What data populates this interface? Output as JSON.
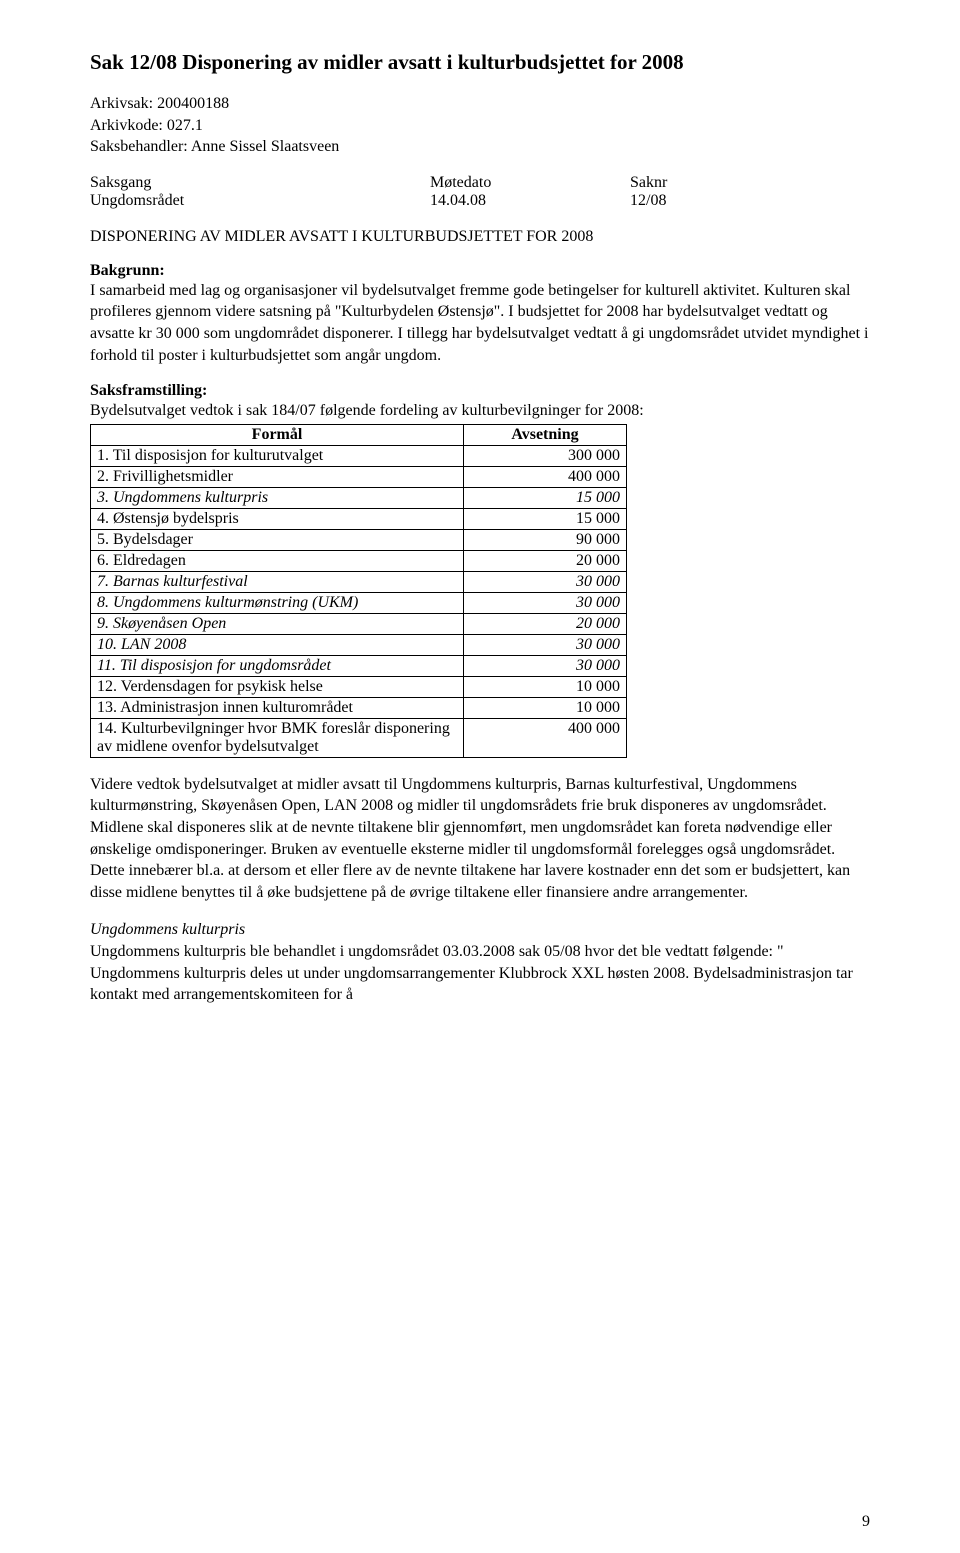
{
  "title": "Sak 12/08   Disponering av midler avsatt i kulturbudsjettet for 2008",
  "meta": {
    "arkivsak_label": "Arkivsak:",
    "arkivsak_value": "200400188",
    "arkivkode_label": "Arkivkode:",
    "arkivkode_value": "027.1",
    "saksbehandler_label": "Saksbehandler:",
    "saksbehandler_value": "Anne Sissel Slaatsveen"
  },
  "saksgang": {
    "h1": "Saksgang",
    "h2": "Møtedato",
    "h3": "Saknr",
    "r1c1": "Ungdomsrådet",
    "r1c2": "14.04.08",
    "r1c3": "12/08"
  },
  "caps_title": "DISPONERING AV MIDLER AVSATT I KULTURBUDSJETTET FOR 2008",
  "bakgrunn": {
    "label": "Bakgrunn:",
    "text": "I samarbeid med lag og organisasjoner vil bydelsutvalget fremme gode betingelser for kulturell aktivitet. Kulturen skal profileres gjennom videre satsning på \"Kulturbydelen Østensjø\". I budsjettet for 2008 har bydelsutvalget vedtatt og avsatte kr 30 000 som ungdområdet disponerer. I tillegg har bydelsutvalget vedtatt å gi ungdomsrådet utvidet myndighet i forhold til poster i kulturbudsjettet som angår ungdom."
  },
  "saksframstilling": {
    "label": "Saksframstilling:",
    "intro": "Bydelsutvalget vedtok i sak 184/07 følgende fordeling av kulturbevilgninger for 2008:"
  },
  "table": {
    "header_label": "Formål",
    "header_value": "Avsetning",
    "rows": [
      {
        "label": "1. Til disposisjon for kulturutvalget",
        "value": "300 000",
        "italic": false
      },
      {
        "label": "2. Frivillighetsmidler",
        "value": "400 000",
        "italic": false
      },
      {
        "label": "3. Ungdommens kulturpris",
        "value": "15 000",
        "italic": true
      },
      {
        "label": "4. Østensjø bydelspris",
        "value": "15 000",
        "italic": false
      },
      {
        "label": "5. Bydelsdager",
        "value": "90 000",
        "italic": false
      },
      {
        "label": "6. Eldredagen",
        "value": "20 000",
        "italic": false
      },
      {
        "label": "7. Barnas kulturfestival",
        "value": "30 000",
        "italic": true
      },
      {
        "label": "8. Ungdommens kulturmønstring (UKM)",
        "value": "30 000",
        "italic": true
      },
      {
        "label": "9. Skøyenåsen Open",
        "value": "20 000",
        "italic": true
      },
      {
        "label": "10. LAN 2008",
        "value": "30 000",
        "italic": true
      },
      {
        "label": "11. Til disposisjon for ungdomsrådet",
        "value": "30 000",
        "italic": true
      },
      {
        "label": "12. Verdensdagen for psykisk helse",
        "value": "10 000",
        "italic": false
      },
      {
        "label": "13. Administrasjon innen kulturområdet",
        "value": "10 000",
        "italic": false
      },
      {
        "label": "14. Kulturbevilgninger hvor BMK foreslår disponering av midlene ovenfor bydelsutvalget",
        "value": "400 000",
        "italic": false
      }
    ]
  },
  "videre_para": "Videre vedtok bydelsutvalget at midler avsatt til Ungdommens kulturpris, Barnas kulturfestival, Ungdommens kulturmønstring, Skøyenåsen Open, LAN 2008 og midler til ungdomsrådets frie bruk disponeres av ungdomsrådet. Midlene skal disponeres slik at de nevnte tiltakene blir gjennomført, men ungdomsrådet kan foreta nødvendige eller ønskelige omdisponeringer. Bruken av eventuelle eksterne midler til ungdomsformål forelegges også ungdomsrådet. Dette innebærer bl.a. at dersom et eller flere av de nevnte tiltakene har lavere kostnader enn det som er budsjettert, kan disse midlene benyttes til å øke budsjettene på de øvrige tiltakene eller finansiere andre arrangementer.",
  "kulturpris": {
    "heading": "Ungdommens kulturpris",
    "text": "Ungdommens kulturpris ble behandlet i ungdomsrådet 03.03.2008 sak 05/08 hvor det ble vedtatt følgende: \" Ungdommens kulturpris deles ut under ungdomsarrangementer Klubbrock XXL høsten 2008. Bydelsadministrasjon tar kontakt med arrangementskomiteen for å"
  },
  "page_number": "9"
}
